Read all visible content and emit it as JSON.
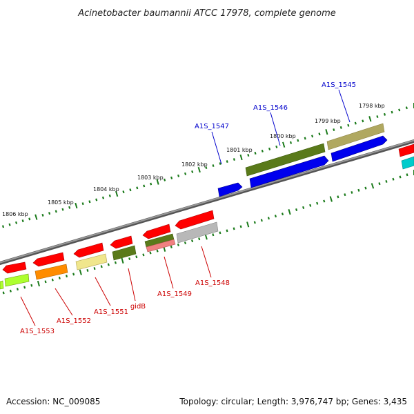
{
  "title": "Acinetobacter baumannii ATCC 17978, complete genome",
  "footer": {
    "accession": "Accession: NC_009085",
    "topology": "Topology: circular; Length: 3,976,747 bp; Genes: 3,435"
  },
  "ticks": [
    "1806 kbp",
    "1805 kbp",
    "1804 kbp",
    "1803 kbp",
    "1802 kbp",
    "1801 kbp",
    "1800 kbp",
    "1799 kbp",
    "1798 kbp"
  ],
  "forward_labels": [
    "A1S_1547",
    "A1S_1546",
    "A1S_1545"
  ],
  "reverse_labels": [
    "A1S_1553",
    "A1S_1552",
    "A1S_1551",
    "gidB",
    "A1S_1549",
    "A1S_1548"
  ],
  "colors": {
    "backbone": "#7a7a7a",
    "forward_label": "#0000cc",
    "reverse_label": "#cc0000",
    "tick": "#1a7a1a",
    "cds": "#ff0000",
    "blue": "#0000ee",
    "olive": "#5a7a1a",
    "khaki": "#b0a860",
    "orange": "#ff8c00",
    "yellow": "#f0e68c",
    "gray": "#b8b8b8",
    "pink": "#f08080",
    "lime": "#adff2f",
    "cyan": "#00cccc"
  }
}
